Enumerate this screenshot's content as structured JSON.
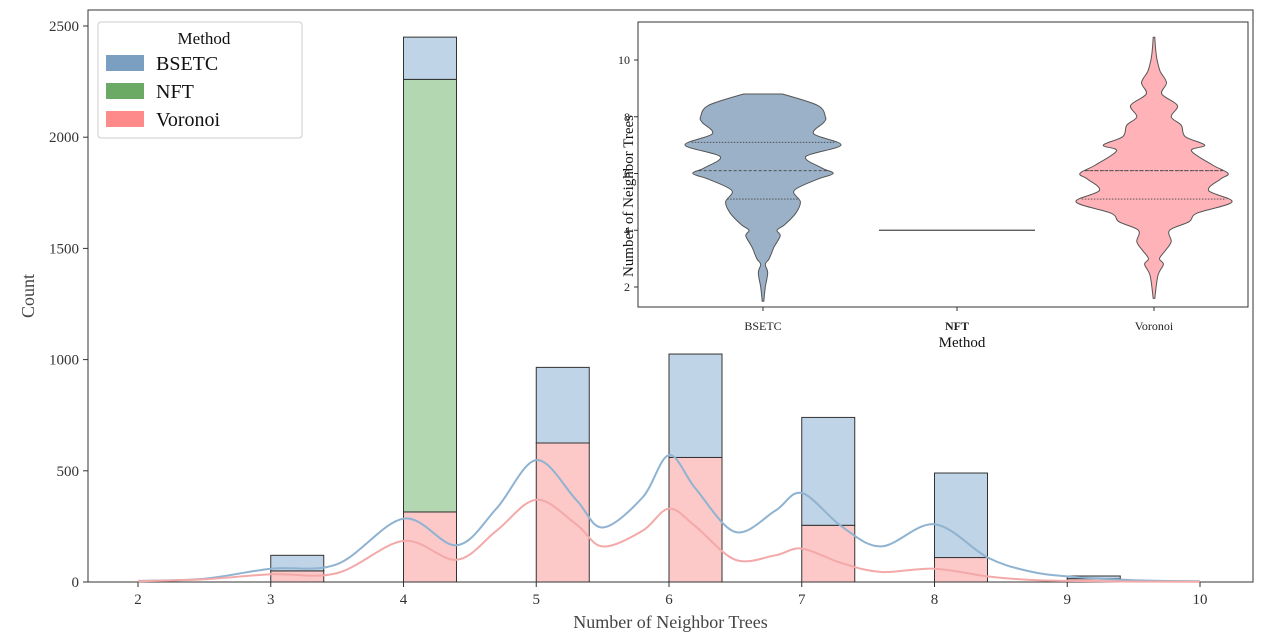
{
  "chart_data": [
    {
      "type": "bar",
      "subtype": "stacked histogram with KDE curves",
      "xlabel": "Number of Neighbor Trees",
      "ylabel": "Count",
      "xlim": [
        2,
        10
      ],
      "ylim": [
        0,
        2500
      ],
      "x_ticks": [
        "2",
        "3",
        "4",
        "5",
        "6",
        "7",
        "8",
        "9",
        "10"
      ],
      "y_ticks": [
        "0",
        "500",
        "1000",
        "1500",
        "2000",
        "2500"
      ],
      "grid": false,
      "legend": {
        "title": "Method",
        "placement": "top-left",
        "entries": [
          "BSETC",
          "NFT",
          "Voronoi"
        ]
      },
      "categories": [
        "3",
        "4",
        "5",
        "6",
        "7",
        "8",
        "9"
      ],
      "series": [
        {
          "name": "Voronoi",
          "color": "#ff8a8a",
          "fill": "#fcc8c8",
          "values": [
            50,
            315,
            625,
            560,
            255,
            110,
            15
          ]
        },
        {
          "name": "NFT",
          "color": "#6aaa64",
          "fill": "#b3d7b0",
          "values": [
            0,
            1945,
            0,
            0,
            0,
            0,
            0
          ]
        },
        {
          "name": "BSETC",
          "color": "#7a9fc0",
          "fill": "#bfd4e6",
          "values": [
            70,
            190,
            340,
            465,
            485,
            380,
            12
          ]
        }
      ],
      "kde": [
        {
          "name": "BSETC",
          "color": "#8fb3d1",
          "x": [
            2,
            2.5,
            3,
            3.5,
            4,
            4.4,
            4.7,
            5,
            5.3,
            5.5,
            5.8,
            6,
            6.2,
            6.5,
            6.8,
            7,
            7.3,
            7.6,
            8,
            8.4,
            8.7,
            9,
            9.5,
            10
          ],
          "y": [
            5,
            15,
            60,
            80,
            285,
            165,
            330,
            548,
            370,
            245,
            380,
            570,
            420,
            225,
            320,
            400,
            250,
            160,
            260,
            110,
            50,
            25,
            8,
            3
          ]
        },
        {
          "name": "Voronoi",
          "color": "#f4a9a9",
          "x": [
            2,
            2.5,
            3,
            3.5,
            4,
            4.4,
            4.7,
            5,
            5.3,
            5.5,
            5.8,
            6,
            6.2,
            6.5,
            6.8,
            7,
            7.3,
            7.6,
            8,
            8.4,
            8.7,
            9,
            9.5,
            10
          ],
          "y": [
            3,
            12,
            35,
            40,
            185,
            100,
            230,
            370,
            260,
            160,
            230,
            330,
            250,
            100,
            120,
            150,
            85,
            45,
            60,
            25,
            10,
            5,
            2,
            1
          ]
        }
      ]
    },
    {
      "type": "violin",
      "xlabel": "Method",
      "ylabel": "Number of Neighbor Trees",
      "categories": [
        "BSETC",
        "NFT",
        "Voronoi"
      ],
      "y_ticks": [
        "2",
        "4",
        "6",
        "8",
        "10"
      ],
      "ylim": [
        1,
        11
      ],
      "violins": [
        {
          "name": "BSETC",
          "color": "#9ab1c8",
          "min": 1.5,
          "max": 8.8,
          "quartiles": [
            5.1,
            6.1,
            7.1
          ],
          "profile_y": [
            1.5,
            2,
            2.5,
            2.8,
            3,
            3.4,
            3.8,
            4,
            4.2,
            4.6,
            5,
            5.4,
            5.8,
            6,
            6.2,
            6.6,
            7,
            7.4,
            7.8,
            8,
            8.4,
            8.8
          ],
          "profile_w": [
            0.01,
            0.03,
            0.06,
            0.03,
            0.08,
            0.14,
            0.22,
            0.18,
            0.28,
            0.42,
            0.48,
            0.4,
            0.7,
            0.9,
            0.75,
            0.55,
            1.0,
            0.65,
            0.78,
            0.8,
            0.7,
            0.25
          ]
        },
        {
          "name": "NFT",
          "color": "#4a4a4a",
          "value": 4.0
        },
        {
          "name": "Voronoi",
          "color": "#ffb3b8",
          "min": 1.6,
          "max": 10.8,
          "quartiles": [
            5.1,
            6.1,
            6.1
          ],
          "profile_y": [
            1.6,
            2.4,
            2.8,
            3,
            3.3,
            3.6,
            4,
            4.3,
            4.6,
            5,
            5.4,
            5.8,
            6,
            6.3,
            6.8,
            7,
            7.3,
            7.7,
            8,
            8.4,
            8.8,
            9.2,
            9.6,
            10,
            10.4,
            10.8
          ],
          "profile_w": [
            0.01,
            0.05,
            0.12,
            0.07,
            0.15,
            0.22,
            0.2,
            0.45,
            0.55,
            1.0,
            0.7,
            0.85,
            0.95,
            0.75,
            0.48,
            0.65,
            0.4,
            0.35,
            0.22,
            0.3,
            0.1,
            0.16,
            0.08,
            0.04,
            0.02,
            0.01
          ]
        }
      ]
    }
  ]
}
